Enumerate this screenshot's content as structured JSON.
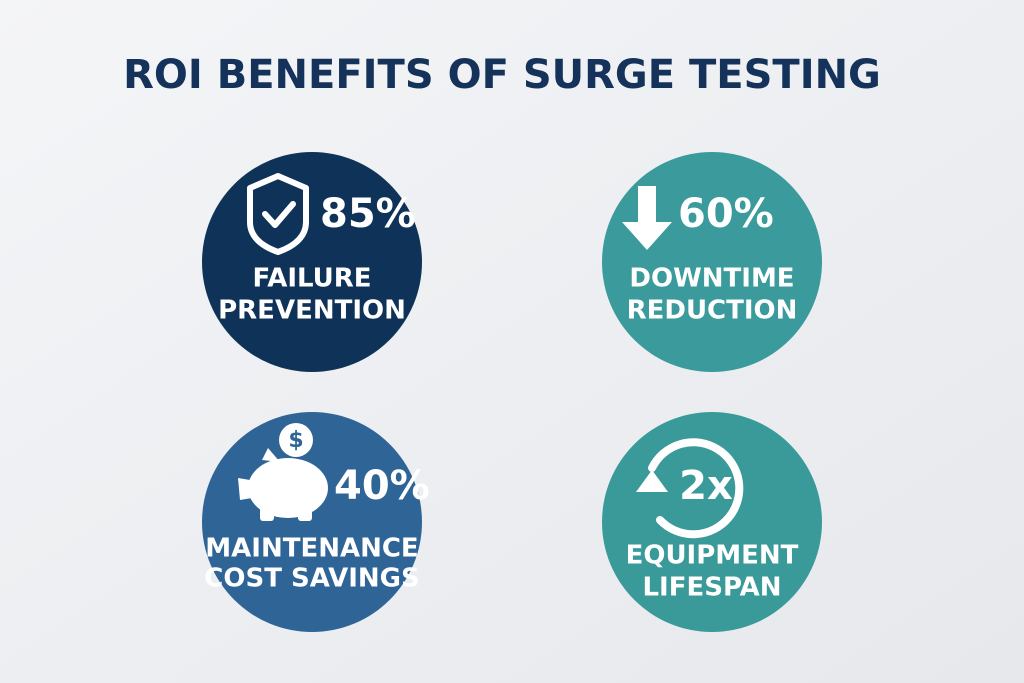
{
  "header": {
    "title": "ROI BENEFITS OF SURGE TESTING"
  },
  "items": [
    {
      "value": "85%",
      "label": [
        "FAILURE",
        "PREVENTION"
      ]
    },
    {
      "value": "60%",
      "label": [
        "DOWNTIME",
        "REDUCTION"
      ]
    },
    {
      "value": "40%",
      "label": [
        "MAINTENANCE",
        "COST SAVINGS"
      ],
      "icon_text": "$"
    },
    {
      "value": "2x",
      "label": [
        "EQUIPMENT",
        "LIFESPAN"
      ]
    }
  ]
}
